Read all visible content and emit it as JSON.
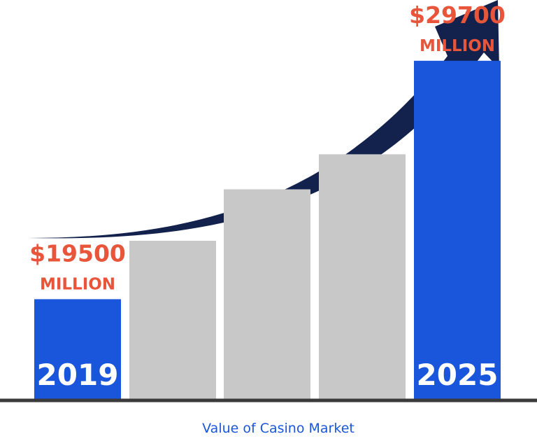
{
  "chart_data": {
    "type": "bar",
    "categories": [
      "2019",
      "",
      "",
      "",
      "2025"
    ],
    "values": [
      19500,
      22000,
      24200,
      25700,
      29700
    ],
    "labels": [
      {
        "value": "$19500",
        "unit": "MILLION",
        "year": "2019"
      },
      {
        "value": "",
        "unit": "",
        "year": ""
      },
      {
        "value": "",
        "unit": "",
        "year": ""
      },
      {
        "value": "",
        "unit": "",
        "year": ""
      },
      {
        "value": "$29700",
        "unit": "MILLION",
        "year": "2025"
      }
    ],
    "xlabel": "Value of Casino Market",
    "ylim": [
      15230,
      32300
    ],
    "grid": false,
    "legend": "none"
  },
  "colors": {
    "highlight_bar": "#1a56db",
    "other_bar": "#c8c8c8",
    "value_text": "#e8553a",
    "year_text": "#ffffff",
    "arrow": "#13224d",
    "baseline": "#3a3a3a",
    "caption": "#1a56db"
  },
  "icons": {
    "growth_arrow": "trend-up-arrow-icon"
  }
}
